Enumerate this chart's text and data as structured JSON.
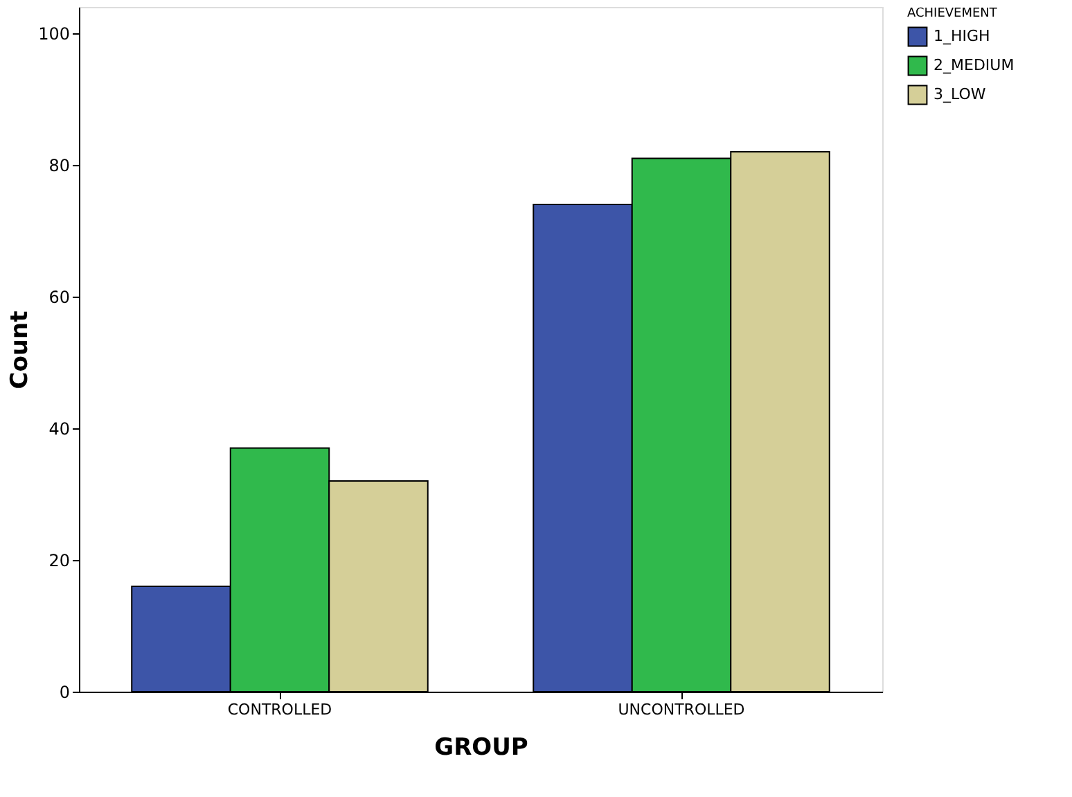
{
  "chart_data": {
    "type": "bar",
    "xlabel": "GROUP",
    "ylabel": "Count",
    "legend_title": "ACHIEVEMENT",
    "categories": [
      "CONTROLLED",
      "UNCONTROLLED"
    ],
    "series": [
      {
        "name": "1_HIGH",
        "color": "#3d55a8",
        "values": [
          16,
          74
        ]
      },
      {
        "name": "2_MEDIUM",
        "color": "#30b94c",
        "values": [
          37,
          81
        ]
      },
      {
        "name": "3_LOW",
        "color": "#d5cf98",
        "values": [
          32,
          82
        ]
      }
    ],
    "ylim": [
      0,
      104
    ],
    "yticks": [
      0,
      20,
      40,
      60,
      80,
      100
    ],
    "grid": false,
    "legend": "top right"
  }
}
